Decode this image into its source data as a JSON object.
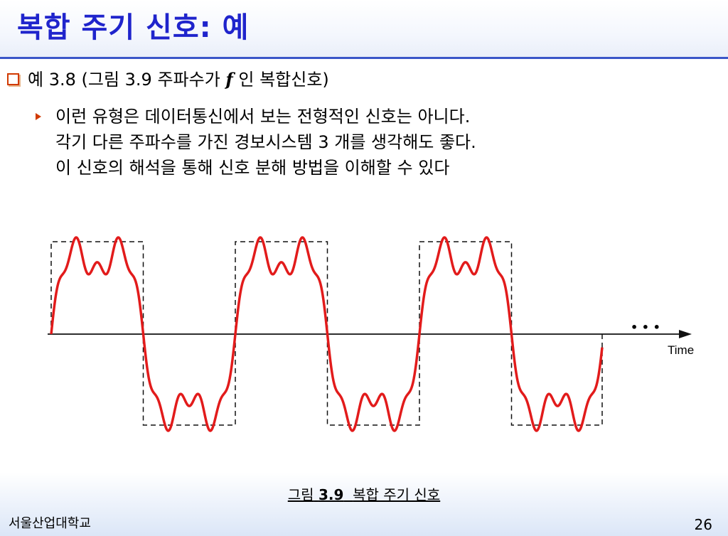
{
  "slide": {
    "title": "복합 주기 신호: 예",
    "bullet1": {
      "prefix": "예 3.8 (그림 3.9 주파수가",
      "f": "f",
      "suffix": "인 복합신호)"
    },
    "bullet2_lines": [
      "이런 유형은 데이터통신에서 보는 전형적인 신호는 아니다.",
      "각기 다른 주파수를 가진 경보시스템 3 개를 생각해도 좋다.",
      "이 신호의 해석을 통해 신호 분해 방법을 이해할 수 있다"
    ],
    "caption_prefix": "그림",
    "caption_number": "3.9",
    "caption_text": "복합 주기 신호",
    "footer_left": "서울산업대학교",
    "page_number": "26"
  },
  "figure": {
    "axis_label": "Time",
    "ellipsis": "• • •",
    "colors": {
      "signal": "#e21b1b",
      "square": "#111111",
      "axis": "#111111"
    }
  }
}
